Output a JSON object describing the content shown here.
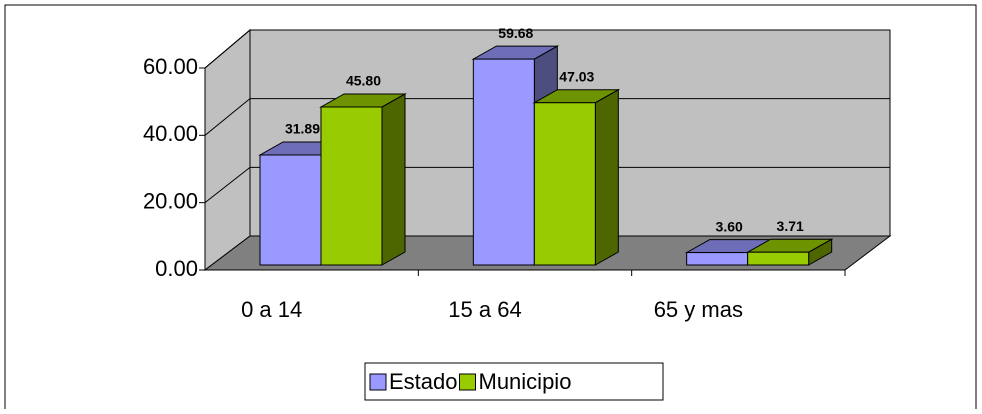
{
  "chart_data": {
    "type": "bar3d",
    "categories": [
      "0 a 14",
      "15 a 64",
      "65 y mas"
    ],
    "series": [
      {
        "name": "Estado",
        "color": "#9999ff",
        "values": [
          31.89,
          59.68,
          3.6
        ],
        "value_labels": [
          "31.89",
          "59.68",
          "3.60"
        ]
      },
      {
        "name": "Municipio",
        "color": "#99cc00",
        "values": [
          45.8,
          47.03,
          3.71
        ],
        "value_labels": [
          "45.80",
          "47.03",
          "3.71"
        ]
      }
    ],
    "ylim": [
      0,
      60
    ],
    "yticks": [
      {
        "value": 0,
        "label": "0.00"
      },
      {
        "value": 20,
        "label": "20.00"
      },
      {
        "value": 40,
        "label": "40.00"
      },
      {
        "value": 60,
        "label": "60.00"
      }
    ],
    "grid": true,
    "legend": "bottom"
  }
}
